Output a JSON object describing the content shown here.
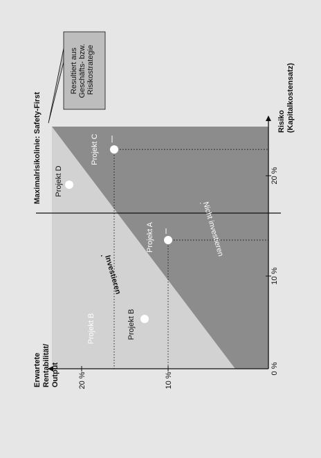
{
  "figure": {
    "y_axis_title": [
      "Erwartete",
      "Rentabilität/",
      "Output"
    ],
    "x_axis_title": [
      "Risiko",
      "(Kapitalkostensatz)"
    ],
    "x_ticks": [
      "0 %",
      "10 %",
      "20 %"
    ],
    "y_ticks": [
      "10 %",
      "20 %"
    ],
    "max_risk_line_label": "Maximalrisikolinie: Safety-First",
    "callout": [
      "Resultiert aus",
      "Geschäfts- bzw.",
      "Risikostrategie"
    ],
    "region_labels": {
      "invest": "Investieren",
      "not_invest": "Nicht investieren",
      "invest_dot": ".",
      "not_invest_dot": "."
    },
    "projects": {
      "a": "Projekt A",
      "b": "Projekt B",
      "b_band": "Projekt B",
      "c": "Projekt C",
      "d": "Projekt D"
    }
  },
  "colors": {
    "background": "#e6e6e6",
    "light_region": "#d2d2d2",
    "dark_region": "#8c8c8c",
    "callout_box": "#bdbdbd",
    "line": "#111111"
  }
}
